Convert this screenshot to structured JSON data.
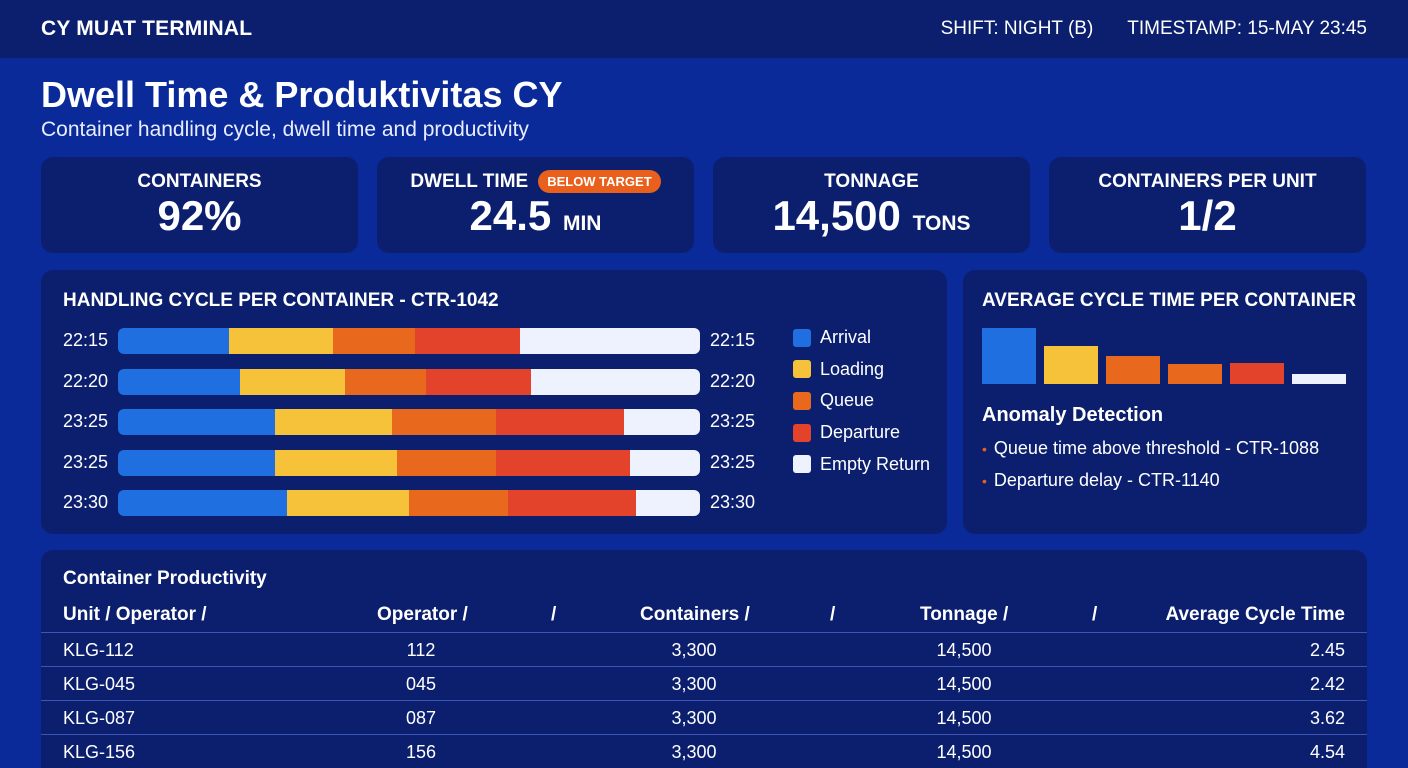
{
  "header": {
    "app_title": "CY MUAT TERMINAL",
    "shift": "SHIFT: NIGHT (B)",
    "timestamp": "TIMESTAMP: 15-MAY 23:45"
  },
  "page": {
    "title": "Dwell Time & Produktivitas CY",
    "subtitle": "Container handling cycle, dwell time and productivity"
  },
  "kpis": [
    {
      "label": "CONTAINERS",
      "value": "92%",
      "unit": ""
    },
    {
      "label": "DWELL TIME",
      "value": "24.5",
      "unit": "MIN",
      "badge": "BELOW TARGET"
    },
    {
      "label": "TONNAGE",
      "value": "14,500",
      "unit": "TONS"
    },
    {
      "label": "CONTAINERS PER UNIT",
      "value": "1/2",
      "unit": ""
    }
  ],
  "cycle_panel": {
    "title": "HANDLING CYCLE PER CONTAINER - CTR-1042",
    "rows": [
      {
        "start": "22:15",
        "end": "22:15",
        "segments": [
          0.19,
          0.18,
          0.14,
          0.18,
          0.31
        ]
      },
      {
        "start": "22:20",
        "end": "22:20",
        "segments": [
          0.21,
          0.18,
          0.14,
          0.18,
          0.29
        ]
      },
      {
        "start": "23:25",
        "end": "23:25",
        "segments": [
          0.27,
          0.2,
          0.18,
          0.22,
          0.13
        ]
      },
      {
        "start": "23:25",
        "end": "23:25",
        "segments": [
          0.27,
          0.21,
          0.17,
          0.23,
          0.12
        ]
      },
      {
        "start": "23:30",
        "end": "23:30",
        "segments": [
          0.29,
          0.21,
          0.17,
          0.22,
          0.11
        ]
      }
    ],
    "legend": [
      {
        "label": "Arrival",
        "color": "#1f6fe0"
      },
      {
        "label": "Loading",
        "color": "#f5c23a"
      },
      {
        "label": "Queue",
        "color": "#e8691e"
      },
      {
        "label": "Departure",
        "color": "#e2432a"
      },
      {
        "label": "Empty Return",
        "color": "#eef2ff"
      }
    ]
  },
  "avg_panel": {
    "title": "AVERAGE CYCLE TIME PER CONTAINER",
    "bars": [
      {
        "value": 1.0,
        "color": "#1f6fe0"
      },
      {
        "value": 0.68,
        "color": "#f5c23a"
      },
      {
        "value": 0.5,
        "color": "#e8691e"
      },
      {
        "value": 0.36,
        "color": "#e8691e"
      },
      {
        "value": 0.38,
        "color": "#e2432a"
      },
      {
        "value": 0.18,
        "color": "#eef2ff"
      }
    ],
    "anomaly_title": "Anomaly Detection",
    "anomalies": [
      "Queue time above threshold - CTR-1088",
      "Departure delay - CTR-1140"
    ]
  },
  "table": {
    "title": "Container Productivity",
    "headers": [
      "Unit / Operator /",
      "Operator /",
      "/",
      "Containers /",
      "/",
      "Tonnage /",
      "/",
      "Average Cycle Time"
    ],
    "rows": [
      [
        "KLG-112",
        "112",
        "3,300",
        "14,500",
        "2.45"
      ],
      [
        "KLG-045",
        "045",
        "3,300",
        "14,500",
        "2.42"
      ],
      [
        "KLG-087",
        "087",
        "3,300",
        "14,500",
        "3.62"
      ],
      [
        "KLG-156",
        "156",
        "3,300",
        "14,500",
        "4.54"
      ]
    ]
  }
}
